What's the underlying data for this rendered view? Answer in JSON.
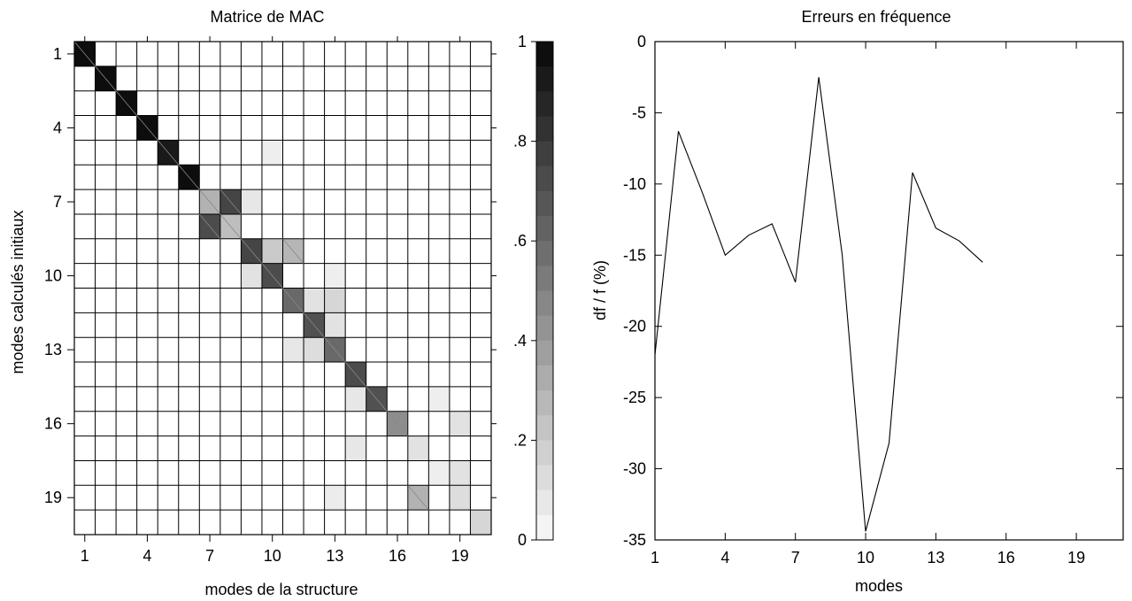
{
  "chart_data": [
    {
      "type": "heatmap",
      "title": "Matrice de MAC",
      "xlabel": "modes de la structure",
      "ylabel": "modes calculés initiaux",
      "rows": 20,
      "cols": 20,
      "x_ticks": [
        1,
        4,
        7,
        10,
        13,
        16,
        19
      ],
      "y_ticks": [
        1,
        4,
        7,
        10,
        13,
        16,
        19
      ],
      "colorbar": {
        "range": [
          0,
          1
        ],
        "ticks": [
          {
            "value": 0,
            "label": "0"
          },
          {
            "value": 0.2,
            "label": ".2"
          },
          {
            "value": 0.4,
            "label": ".4"
          },
          {
            "value": 0.6,
            "label": ".6"
          },
          {
            "value": 0.8,
            "label": ".8"
          },
          {
            "value": 1,
            "label": "1"
          }
        ],
        "levels": 20
      },
      "cells": [
        {
          "row": 1,
          "col": 1,
          "value": 0.98
        },
        {
          "row": 2,
          "col": 2,
          "value": 0.98
        },
        {
          "row": 3,
          "col": 3,
          "value": 0.98
        },
        {
          "row": 4,
          "col": 4,
          "value": 0.98
        },
        {
          "row": 5,
          "col": 5,
          "value": 0.93
        },
        {
          "row": 5,
          "col": 10,
          "value": 0.05
        },
        {
          "row": 6,
          "col": 6,
          "value": 0.98
        },
        {
          "row": 7,
          "col": 7,
          "value": 0.3
        },
        {
          "row": 7,
          "col": 8,
          "value": 0.75
        },
        {
          "row": 7,
          "col": 9,
          "value": 0.08
        },
        {
          "row": 8,
          "col": 7,
          "value": 0.72
        },
        {
          "row": 8,
          "col": 8,
          "value": 0.25
        },
        {
          "row": 9,
          "col": 9,
          "value": 0.75
        },
        {
          "row": 9,
          "col": 10,
          "value": 0.2
        },
        {
          "row": 9,
          "col": 11,
          "value": 0.28
        },
        {
          "row": 10,
          "col": 9,
          "value": 0.1
        },
        {
          "row": 10,
          "col": 10,
          "value": 0.72
        },
        {
          "row": 10,
          "col": 13,
          "value": 0.05
        },
        {
          "row": 11,
          "col": 11,
          "value": 0.6
        },
        {
          "row": 11,
          "col": 12,
          "value": 0.1
        },
        {
          "row": 11,
          "col": 13,
          "value": 0.15
        },
        {
          "row": 12,
          "col": 12,
          "value": 0.7
        },
        {
          "row": 12,
          "col": 13,
          "value": 0.1
        },
        {
          "row": 13,
          "col": 11,
          "value": 0.08
        },
        {
          "row": 13,
          "col": 12,
          "value": 0.12
        },
        {
          "row": 13,
          "col": 13,
          "value": 0.6
        },
        {
          "row": 14,
          "col": 14,
          "value": 0.72
        },
        {
          "row": 15,
          "col": 14,
          "value": 0.08
        },
        {
          "row": 15,
          "col": 15,
          "value": 0.7
        },
        {
          "row": 15,
          "col": 18,
          "value": 0.05
        },
        {
          "row": 16,
          "col": 16,
          "value": 0.45
        },
        {
          "row": 16,
          "col": 19,
          "value": 0.1
        },
        {
          "row": 17,
          "col": 14,
          "value": 0.08
        },
        {
          "row": 17,
          "col": 17,
          "value": 0.1
        },
        {
          "row": 18,
          "col": 18,
          "value": 0.05
        },
        {
          "row": 18,
          "col": 19,
          "value": 0.1
        },
        {
          "row": 19,
          "col": 13,
          "value": 0.06
        },
        {
          "row": 19,
          "col": 17,
          "value": 0.3
        },
        {
          "row": 19,
          "col": 19,
          "value": 0.12
        },
        {
          "row": 20,
          "col": 20,
          "value": 0.15
        }
      ]
    },
    {
      "type": "line",
      "title": "Erreurs en fréquence",
      "xlabel": "modes",
      "ylabel": "df / f  (%)",
      "xlim": [
        1,
        21
      ],
      "ylim": [
        -35,
        0
      ],
      "x_ticks": [
        1,
        4,
        7,
        10,
        13,
        16,
        19
      ],
      "y_ticks": [
        0,
        -5,
        -10,
        -15,
        -20,
        -25,
        -30,
        -35
      ],
      "x": [
        1,
        2,
        3,
        4,
        5,
        6,
        7,
        8,
        9,
        10,
        11,
        12,
        13,
        14,
        15
      ],
      "y": [
        -22,
        -6.3,
        -10.5,
        -15,
        -13.6,
        -12.8,
        -16.9,
        -2.5,
        -15,
        -34.4,
        -28.2,
        -9.2,
        -13.1,
        -14.0,
        -15.5
      ]
    }
  ]
}
